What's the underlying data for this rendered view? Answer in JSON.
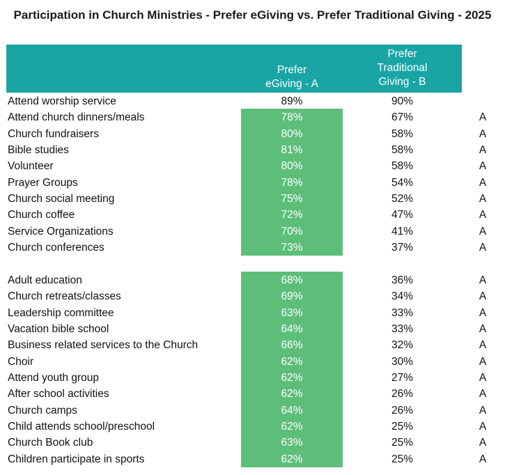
{
  "chart_data": {
    "type": "table",
    "title": "Participation in Church Ministries - Prefer eGiving vs. Prefer Traditional Giving - 2025",
    "columns": [
      {
        "key": "a",
        "label_lines": [
          "Prefer",
          "eGiving - A"
        ]
      },
      {
        "key": "b",
        "label_lines": [
          "Prefer",
          "Traditional",
          "Giving - B"
        ]
      }
    ],
    "rows": [
      {
        "label": "Attend worship service",
        "a": "89%",
        "b": "90%",
        "sig": "",
        "highlight": false
      },
      {
        "label": "Attend church dinners/meals",
        "a": "78%",
        "b": "67%",
        "sig": "A",
        "highlight": true
      },
      {
        "label": "Church fundraisers",
        "a": "80%",
        "b": "58%",
        "sig": "A",
        "highlight": true
      },
      {
        "label": "Bible studies",
        "a": "81%",
        "b": "58%",
        "sig": "A",
        "highlight": true
      },
      {
        "label": "Volunteer",
        "a": "80%",
        "b": "58%",
        "sig": "A",
        "highlight": true
      },
      {
        "label": "Prayer Groups",
        "a": "78%",
        "b": "54%",
        "sig": "A",
        "highlight": true
      },
      {
        "label": "Church social meeting",
        "a": "75%",
        "b": "52%",
        "sig": "A",
        "highlight": true
      },
      {
        "label": "Church coffee",
        "a": "72%",
        "b": "47%",
        "sig": "A",
        "highlight": true
      },
      {
        "label": "Service Organizations",
        "a": "70%",
        "b": "41%",
        "sig": "A",
        "highlight": true
      },
      {
        "label": "Church conferences",
        "a": "73%",
        "b": "37%",
        "sig": "A",
        "highlight": true
      },
      {
        "label": "Adult education",
        "a": "68%",
        "b": "36%",
        "sig": "A",
        "highlight": true
      },
      {
        "label": "Church retreats/classes",
        "a": "69%",
        "b": "34%",
        "sig": "A",
        "highlight": true
      },
      {
        "label": "Leadership committee",
        "a": "63%",
        "b": "33%",
        "sig": "A",
        "highlight": true
      },
      {
        "label": "Vacation bible school",
        "a": "64%",
        "b": "33%",
        "sig": "A",
        "highlight": true
      },
      {
        "label": "Business related services to the Church",
        "a": "66%",
        "b": "32%",
        "sig": "A",
        "highlight": true
      },
      {
        "label": "Choir",
        "a": "62%",
        "b": "30%",
        "sig": "A",
        "highlight": true
      },
      {
        "label": "Attend youth group",
        "a": "62%",
        "b": "27%",
        "sig": "A",
        "highlight": true
      },
      {
        "label": "After school activities",
        "a": "62%",
        "b": "26%",
        "sig": "A",
        "highlight": true
      },
      {
        "label": "Church camps",
        "a": "64%",
        "b": "26%",
        "sig": "A",
        "highlight": true
      },
      {
        "label": "Child attends school/preschool",
        "a": "62%",
        "b": "25%",
        "sig": "A",
        "highlight": true
      },
      {
        "label": "Church Book club",
        "a": "63%",
        "b": "25%",
        "sig": "A",
        "highlight": true
      },
      {
        "label": "Children participate in sports",
        "a": "62%",
        "b": "25%",
        "sig": "A",
        "highlight": true
      }
    ],
    "colors": {
      "header": "#1aa5a5",
      "highlight": "#5dbe7a"
    }
  }
}
